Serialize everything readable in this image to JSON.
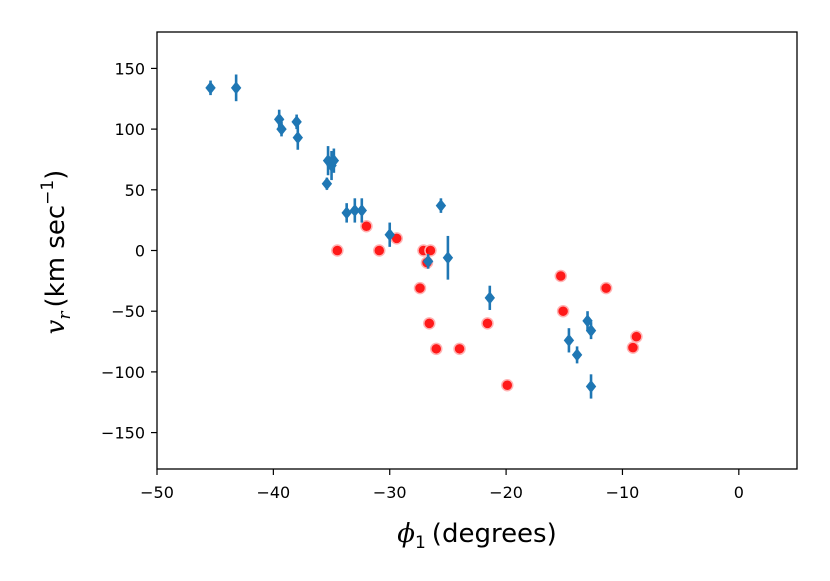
{
  "chart_data": {
    "type": "scatter",
    "xlabel_symbol": "ϕ",
    "xlabel_sub": "1",
    "xlabel_text": "(degrees)",
    "ylabel_symbol": "v",
    "ylabel_sub": "r",
    "ylabel_text": "(km sec",
    "ylabel_sup": "−1",
    "ylabel_close": ")",
    "xlim": [
      -50,
      5
    ],
    "ylim": [
      -180,
      180
    ],
    "xticks": [
      -50,
      -40,
      -30,
      -20,
      -10,
      0
    ],
    "xtick_labels": [
      "−50",
      "−40",
      "−30",
      "−20",
      "−10",
      "0"
    ],
    "yticks": [
      -150,
      -100,
      -50,
      0,
      50,
      100,
      150
    ],
    "ytick_labels": [
      "−150",
      "−100",
      "−50",
      "0",
      "50",
      "100",
      "150"
    ],
    "grid": false,
    "series": [
      {
        "marker": "diamond",
        "color": "#1f77b4",
        "points": [
          {
            "x": -45.4,
            "y": 134,
            "err": 6
          },
          {
            "x": -43.2,
            "y": 134,
            "err": 11
          },
          {
            "x": -39.5,
            "y": 108,
            "err": 8
          },
          {
            "x": -39.3,
            "y": 100,
            "err": 6
          },
          {
            "x": -38.0,
            "y": 106,
            "err": 6
          },
          {
            "x": -37.9,
            "y": 93,
            "err": 10
          },
          {
            "x": -35.4,
            "y": 55,
            "err": 5
          },
          {
            "x": -35.3,
            "y": 74,
            "err": 12
          },
          {
            "x": -35.0,
            "y": 70,
            "err": 12
          },
          {
            "x": -34.8,
            "y": 74,
            "err": 10
          },
          {
            "x": -33.7,
            "y": 31,
            "err": 8
          },
          {
            "x": -33.0,
            "y": 33,
            "err": 10
          },
          {
            "x": -32.4,
            "y": 33,
            "err": 10
          },
          {
            "x": -30.0,
            "y": 13,
            "err": 10
          },
          {
            "x": -26.7,
            "y": -9,
            "err": 6
          },
          {
            "x": -25.6,
            "y": 37,
            "err": 6
          },
          {
            "x": -25.0,
            "y": -6,
            "err": 18
          },
          {
            "x": -21.4,
            "y": -39,
            "err": 10
          },
          {
            "x": -14.6,
            "y": -74,
            "err": 10
          },
          {
            "x": -13.9,
            "y": -86,
            "err": 7
          },
          {
            "x": -13.0,
            "y": -58,
            "err": 8
          },
          {
            "x": -12.7,
            "y": -66,
            "err": 7
          },
          {
            "x": -12.7,
            "y": -112,
            "err": 10
          }
        ]
      },
      {
        "marker": "circle",
        "color": "#ff0000",
        "points": [
          {
            "x": -34.5,
            "y": 0
          },
          {
            "x": -32.0,
            "y": 20
          },
          {
            "x": -30.9,
            "y": 0
          },
          {
            "x": -29.4,
            "y": 10
          },
          {
            "x": -27.4,
            "y": -31
          },
          {
            "x": -27.1,
            "y": 0
          },
          {
            "x": -26.5,
            "y": 0
          },
          {
            "x": -26.6,
            "y": -60
          },
          {
            "x": -26.8,
            "y": -10
          },
          {
            "x": -26.0,
            "y": -81
          },
          {
            "x": -24.0,
            "y": -81
          },
          {
            "x": -21.6,
            "y": -60
          },
          {
            "x": -19.9,
            "y": -111
          },
          {
            "x": -15.3,
            "y": -21
          },
          {
            "x": -15.1,
            "y": -50
          },
          {
            "x": -11.4,
            "y": -31
          },
          {
            "x": -9.1,
            "y": -80
          },
          {
            "x": -8.8,
            "y": -71
          }
        ]
      }
    ]
  }
}
